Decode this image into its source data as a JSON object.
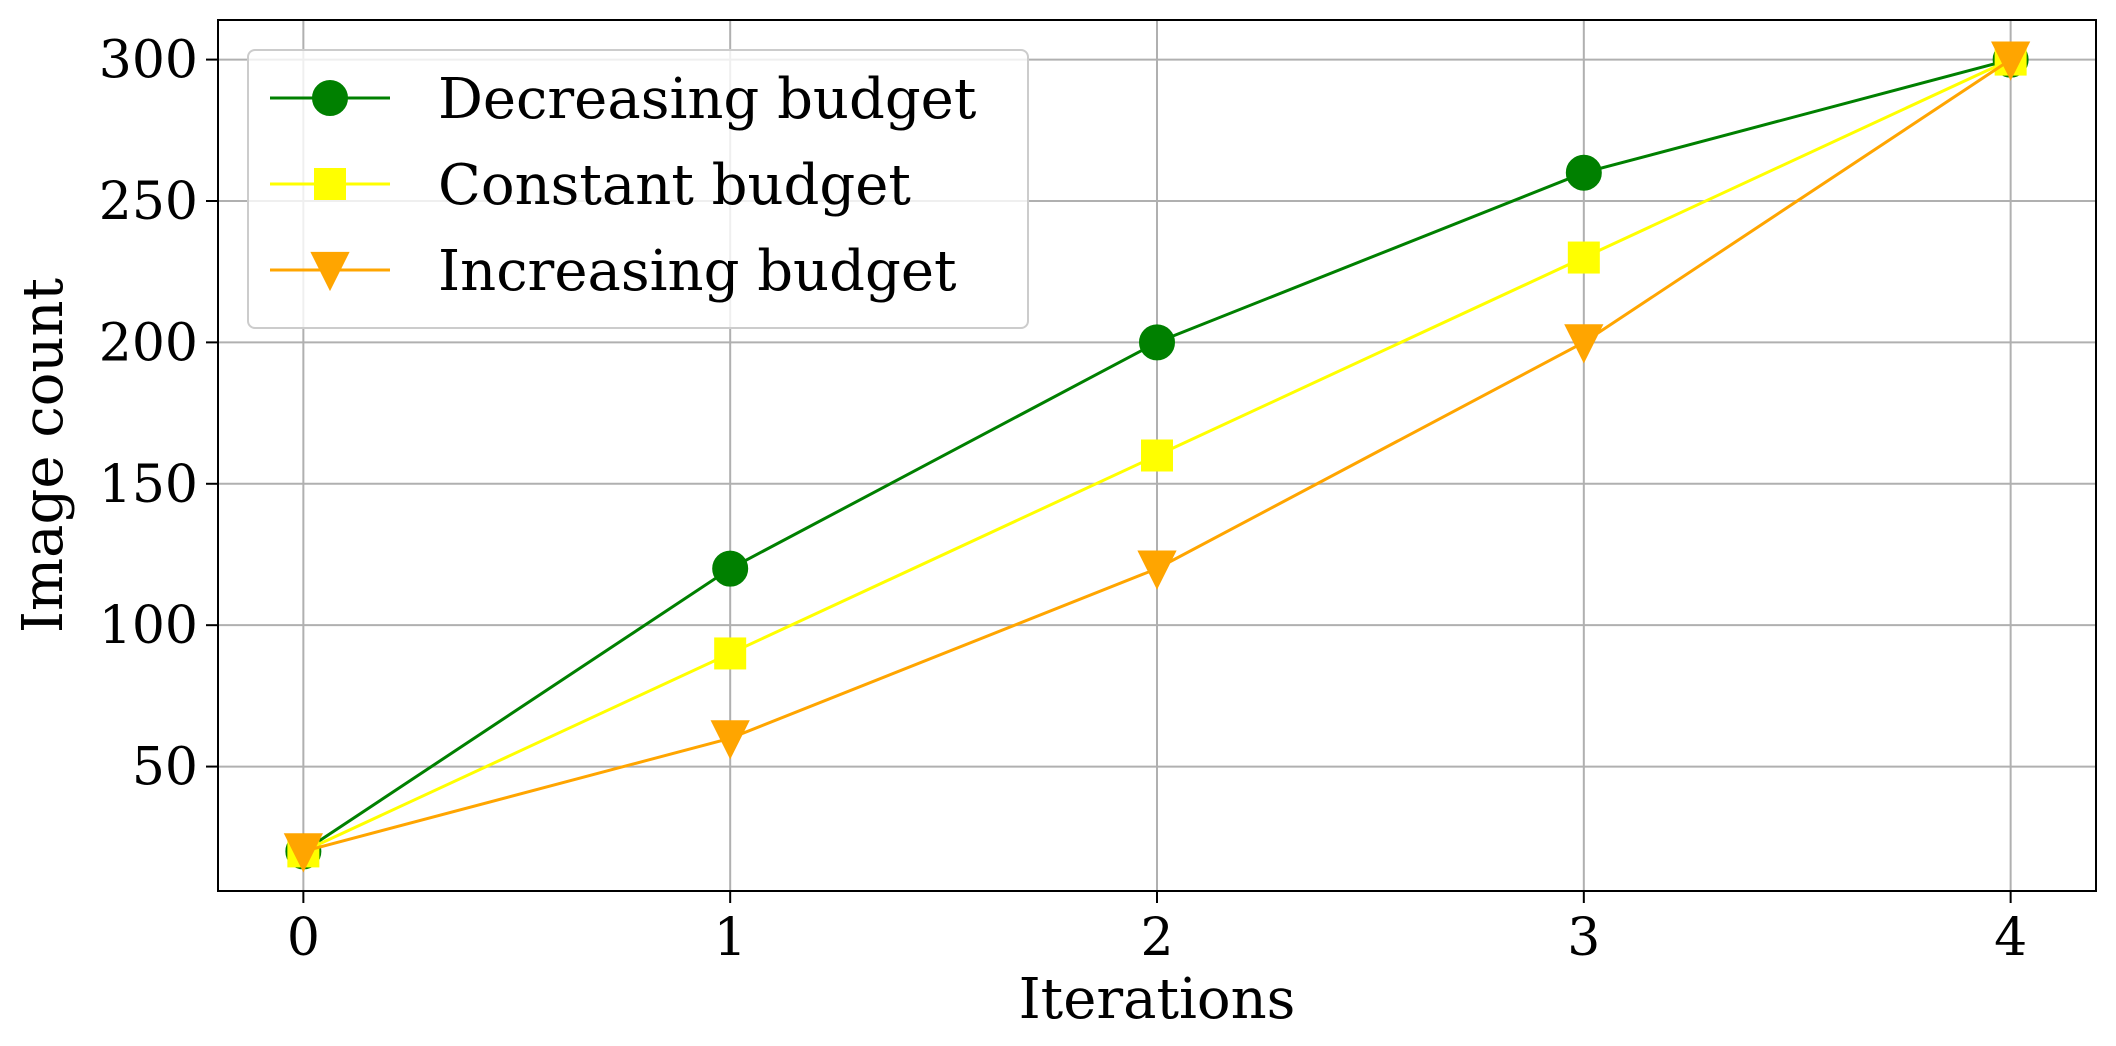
{
  "chart_data": {
    "type": "line",
    "x": [
      0,
      1,
      2,
      3,
      4
    ],
    "x_ticks": [
      "0",
      "1",
      "2",
      "3",
      "4"
    ],
    "y_ticks": [
      "50",
      "100",
      "150",
      "200",
      "250",
      "300"
    ],
    "y_tick_values": [
      50,
      100,
      150,
      200,
      250,
      300
    ],
    "xlabel": "Iterations",
    "ylabel": "Image count",
    "xlim": [
      -0.2,
      4.2
    ],
    "ylim": [
      6,
      314
    ],
    "grid": true,
    "legend_position": "upper-left",
    "series": [
      {
        "name": "Decreasing budget",
        "values": [
          20,
          120,
          200,
          260,
          300
        ],
        "color": "#008000",
        "marker": "circle"
      },
      {
        "name": "Constant budget",
        "values": [
          20,
          90,
          160,
          230,
          300
        ],
        "color": "#ffff00",
        "marker": "square"
      },
      {
        "name": "Increasing budget",
        "values": [
          20,
          60,
          120,
          200,
          300
        ],
        "color": "#ffa500",
        "marker": "triangle-down"
      }
    ]
  }
}
